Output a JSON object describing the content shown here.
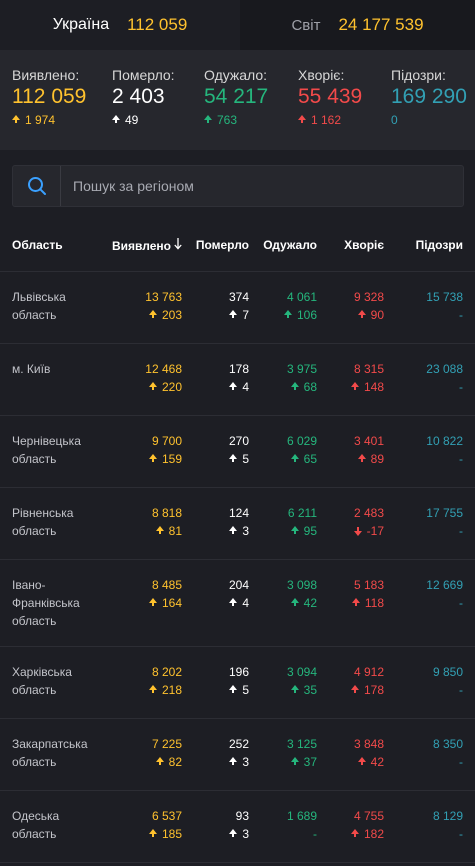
{
  "tabs": [
    {
      "name": "Україна",
      "value": "112 059"
    },
    {
      "name": "Світ",
      "value": "24 177 539"
    }
  ],
  "summary": [
    {
      "label": "Виявлено:",
      "value": "112 059",
      "delta": "1 974",
      "color": "#ffc22e",
      "delta_color": "#ffc22e",
      "arrow": "up"
    },
    {
      "label": "Померло:",
      "value": "2 403",
      "delta": "49",
      "color": "#ffffff",
      "delta_color": "#ffffff",
      "arrow": "up"
    },
    {
      "label": "Одужало:",
      "value": "54 217",
      "delta": "763",
      "color": "#25b67d",
      "delta_color": "#25b67d",
      "arrow": "up"
    },
    {
      "label": "Хворіє:",
      "value": "55 439",
      "delta": "1 162",
      "color": "#f24a4a",
      "delta_color": "#f24a4a",
      "arrow": "up"
    },
    {
      "label": "Підозри:",
      "value": "169 290",
      "delta": "0",
      "color": "#32a0b4",
      "delta_color": "#32a0b4",
      "arrow": "none"
    }
  ],
  "search": {
    "placeholder": "Пошук за регіоном",
    "icon": "search-icon"
  },
  "table": {
    "headers": {
      "region": "Область",
      "detected": "Виявлено",
      "dead": "Померло",
      "recovered": "Одужало",
      "sick": "Хворіє",
      "suspected": "Підозри"
    },
    "rows": [
      {
        "region": "Львівська область",
        "detected": "13 763",
        "detected_d": "203",
        "dead": "374",
        "dead_d": "7",
        "recovered": "4 061",
        "recovered_d": "106",
        "sick": "9 328",
        "sick_d": "90",
        "sick_dir": "up",
        "suspected": "15 738",
        "suspected_d": "-"
      },
      {
        "region": "м. Київ",
        "detected": "12 468",
        "detected_d": "220",
        "dead": "178",
        "dead_d": "4",
        "recovered": "3 975",
        "recovered_d": "68",
        "sick": "8 315",
        "sick_d": "148",
        "sick_dir": "up",
        "suspected": "23 088",
        "suspected_d": "-"
      },
      {
        "region": "Чернівецька область",
        "detected": "9 700",
        "detected_d": "159",
        "dead": "270",
        "dead_d": "5",
        "recovered": "6 029",
        "recovered_d": "65",
        "sick": "3 401",
        "sick_d": "89",
        "sick_dir": "up",
        "suspected": "10 822",
        "suspected_d": "-"
      },
      {
        "region": "Рівненська область",
        "detected": "8 818",
        "detected_d": "81",
        "dead": "124",
        "dead_d": "3",
        "recovered": "6 211",
        "recovered_d": "95",
        "sick": "2 483",
        "sick_d": "-17",
        "sick_dir": "down",
        "suspected": "17 755",
        "suspected_d": "-"
      },
      {
        "region": "Івано-Франківська область",
        "detected": "8 485",
        "detected_d": "164",
        "dead": "204",
        "dead_d": "4",
        "recovered": "3 098",
        "recovered_d": "42",
        "sick": "5 183",
        "sick_d": "118",
        "sick_dir": "up",
        "suspected": "12 669",
        "suspected_d": "-"
      },
      {
        "region": "Харківська область",
        "detected": "8 202",
        "detected_d": "218",
        "dead": "196",
        "dead_d": "5",
        "recovered": "3 094",
        "recovered_d": "35",
        "sick": "4 912",
        "sick_d": "178",
        "sick_dir": "up",
        "suspected": "9 850",
        "suspected_d": "-"
      },
      {
        "region": "Закарпатська область",
        "detected": "7 225",
        "detected_d": "82",
        "dead": "252",
        "dead_d": "3",
        "recovered": "3 125",
        "recovered_d": "37",
        "sick": "3 848",
        "sick_d": "42",
        "sick_dir": "up",
        "suspected": "8 350",
        "suspected_d": "-"
      },
      {
        "region": "Одеська область",
        "detected": "6 537",
        "detected_d": "185",
        "dead": "93",
        "dead_d": "3",
        "recovered": "1 689",
        "recovered_d": "-",
        "sick": "4 755",
        "sick_d": "182",
        "sick_dir": "up",
        "suspected": "8 129",
        "suspected_d": "-"
      }
    ]
  }
}
